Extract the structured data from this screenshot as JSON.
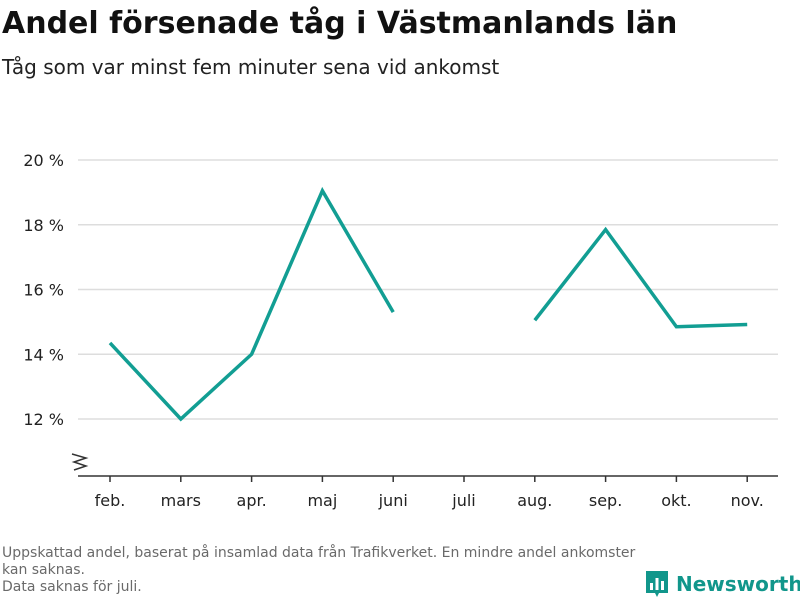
{
  "title": "Andel försenade tåg i Västmanlands län",
  "subtitle": "Tåg som var minst fem minuter sena vid ankomst",
  "footnote": {
    "line1": "Uppskattad andel, baserat på insamlad data från Trafikverket. En mindre andel ankomster kan saknas.",
    "line2": "Data saknas för juli."
  },
  "brand": {
    "name": "Newsworthy",
    "icon": "bar-chart-logo-icon"
  },
  "colors": {
    "line": "#129e93",
    "grid": "#dddddd",
    "axis": "#333333",
    "brand": "#11968b"
  },
  "chart_data": {
    "type": "line",
    "categories": [
      "feb.",
      "mars",
      "apr.",
      "maj",
      "juni",
      "juli",
      "aug.",
      "sep.",
      "okt.",
      "nov."
    ],
    "series": [
      {
        "values": [
          14.35,
          12.0,
          14.0,
          19.05,
          15.3,
          null,
          15.05,
          17.85,
          14.85,
          14.92
        ]
      }
    ],
    "y_ticks": [
      12,
      14,
      16,
      18,
      20
    ],
    "y_tick_labels": [
      "12 %",
      "14 %",
      "16 %",
      "18 %",
      "20 %"
    ],
    "ylim": [
      10.2,
      20
    ],
    "y_axis_break": true,
    "grid": "horizontal",
    "legend": "none"
  }
}
